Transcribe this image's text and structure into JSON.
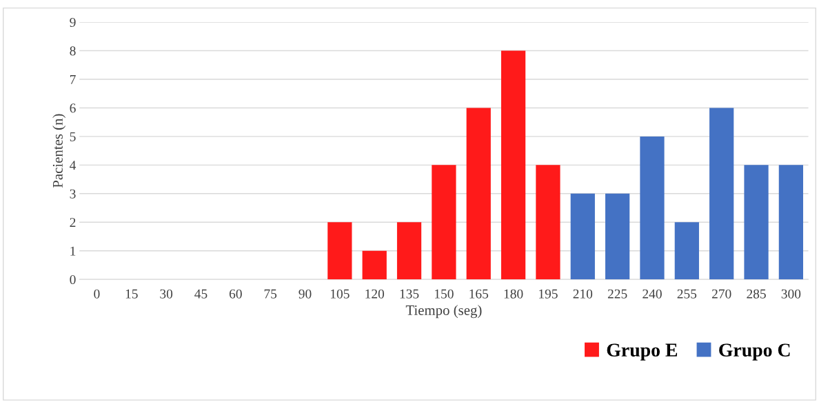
{
  "chart_data": {
    "type": "bar",
    "stacked": true,
    "xlabel": "Tiempo (seg)",
    "ylabel": "Pacientes (n)",
    "categories": [
      "0",
      "15",
      "30",
      "45",
      "60",
      "75",
      "90",
      "105",
      "120",
      "135",
      "150",
      "165",
      "180",
      "195",
      "210",
      "225",
      "240",
      "255",
      "270",
      "285",
      "300"
    ],
    "series": [
      {
        "name": "Grupo E",
        "color": "#ff1a1a",
        "values": [
          null,
          null,
          null,
          null,
          null,
          null,
          null,
          2,
          1,
          2,
          4,
          6,
          8,
          4,
          null,
          null,
          null,
          null,
          null,
          null,
          null
        ]
      },
      {
        "name": "Grupo C",
        "color": "#4472c4",
        "values": [
          null,
          null,
          null,
          null,
          null,
          null,
          null,
          null,
          null,
          null,
          null,
          null,
          null,
          null,
          3,
          3,
          5,
          2,
          6,
          4,
          4
        ]
      }
    ],
    "ylim": [
      0,
      9
    ],
    "yticks": [
      0,
      1,
      2,
      3,
      4,
      5,
      6,
      7,
      8,
      9
    ],
    "grid": "y",
    "legend": "bottom right"
  }
}
